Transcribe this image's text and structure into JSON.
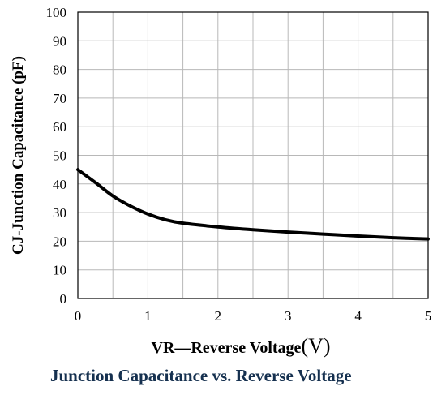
{
  "chart_data": {
    "type": "line",
    "title": "Junction Capacitance vs. Reverse Voltage",
    "xlabel": "VR—Reverse Voltage(V)",
    "ylabel": "CJ-Junction Capacitance (pF)",
    "xlim": [
      0,
      5
    ],
    "ylim": [
      0,
      100
    ],
    "xticks": [
      "0",
      "1",
      "2",
      "3",
      "4",
      "5"
    ],
    "yticks": [
      "0",
      "10",
      "20",
      "30",
      "40",
      "50",
      "60",
      "70",
      "80",
      "90",
      "100"
    ],
    "grid": true,
    "series": [
      {
        "x": [
          0,
          0.25,
          0.5,
          0.75,
          1.0,
          1.25,
          1.5,
          2.0,
          2.5,
          3.0,
          3.5,
          4.0,
          4.5,
          5.0
        ],
        "y": [
          45,
          40.5,
          35.8,
          32.3,
          29.5,
          27.5,
          26.3,
          25.0,
          24.0,
          23.2,
          22.5,
          21.8,
          21.2,
          20.8
        ]
      }
    ],
    "line_color": "#000000"
  },
  "labels": {
    "xlabel_main": "VR—Reverse Voltage",
    "xlabel_paren": "(V)"
  }
}
